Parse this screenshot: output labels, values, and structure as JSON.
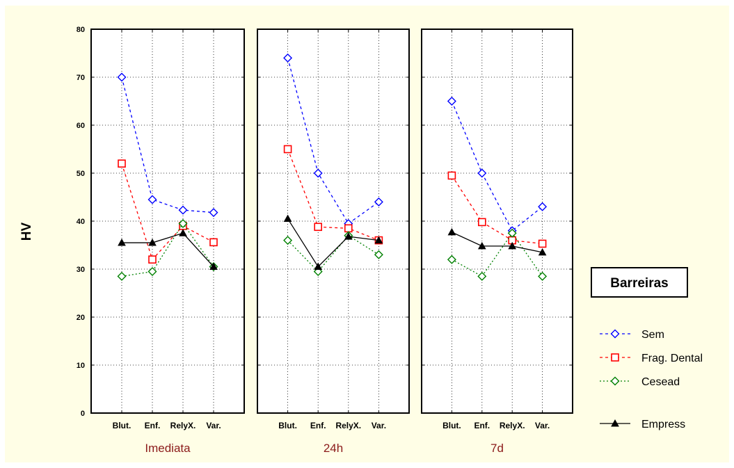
{
  "chart_data": {
    "type": "line",
    "ylabel": "HV",
    "ylim": [
      0,
      80
    ],
    "yticks": [
      0,
      10,
      20,
      30,
      40,
      50,
      60,
      70,
      80
    ],
    "grid": true,
    "legend_position": "right",
    "legend_title": "Barreiras",
    "categories": [
      "Blut.",
      "Enf.",
      "RelyX.",
      "Var."
    ],
    "panels": [
      {
        "label": "Imediata",
        "series": [
          {
            "name": "Sem",
            "values": [
              70,
              44.5,
              42.3,
              41.8
            ]
          },
          {
            "name": "Frag. Dental",
            "values": [
              52,
              32,
              39,
              35.6
            ]
          },
          {
            "name": "Cesead",
            "values": [
              28.5,
              29.5,
              39.5,
              30.5
            ]
          },
          {
            "name": "Empress",
            "values": [
              35.5,
              35.5,
              37.5,
              30.5
            ]
          }
        ]
      },
      {
        "label": "24h",
        "series": [
          {
            "name": "Sem",
            "values": [
              74,
              50,
              39.5,
              44
            ]
          },
          {
            "name": "Frag. Dental",
            "values": [
              55,
              38.8,
              38.5,
              36
            ]
          },
          {
            "name": "Cesead",
            "values": [
              36,
              29.5,
              37,
              33
            ]
          },
          {
            "name": "Empress",
            "values": [
              40.5,
              30.5,
              36.8,
              36
            ]
          }
        ]
      },
      {
        "label": "7d",
        "series": [
          {
            "name": "Sem",
            "values": [
              65,
              50,
              38,
              43
            ]
          },
          {
            "name": "Frag. Dental",
            "values": [
              49.5,
              39.8,
              36,
              35.3
            ]
          },
          {
            "name": "Cesead",
            "values": [
              32,
              28.5,
              37.5,
              28.5
            ]
          },
          {
            "name": "Empress",
            "values": [
              37.7,
              34.8,
              34.8,
              33.5
            ]
          }
        ]
      }
    ],
    "series_styles": [
      {
        "name": "Sem",
        "color": "#0000ff",
        "marker": "diamond-open",
        "dash": "dashed"
      },
      {
        "name": "Frag. Dental",
        "color": "#ff0000",
        "marker": "square-open",
        "dash": "dashed"
      },
      {
        "name": "Cesead",
        "color": "#008000",
        "marker": "diamond-open",
        "dash": "dotted"
      },
      {
        "name": "Empress",
        "color": "#000000",
        "marker": "triangle-filled",
        "dash": "solid"
      }
    ]
  }
}
